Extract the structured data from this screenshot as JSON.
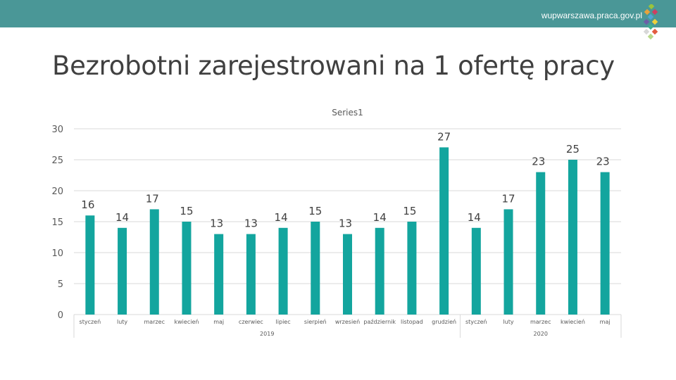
{
  "header": {
    "site_url": "wupwarszawa.praca.gov.pl",
    "bar_color": "#4a9797",
    "logo_icon": "colorful-mosaic-logo-icon"
  },
  "title": "Bezrobotni zarejestrowani na 1 ofertę pracy",
  "chart_data": {
    "type": "bar",
    "title": "Series1",
    "legend": "Series1",
    "xlabel": "",
    "ylabel": "",
    "ylim": [
      0,
      30
    ],
    "yticks": [
      0,
      5,
      10,
      15,
      20,
      25,
      30
    ],
    "grid": true,
    "bar_color": "#13a59e",
    "categories": [
      "styczeń",
      "luty",
      "marzec",
      "kwiecień",
      "maj",
      "czerwiec",
      "lipiec",
      "sierpień",
      "wrzesień",
      "październik",
      "listopad",
      "grudzień",
      "styczeń",
      "luty",
      "marzec",
      "kwiecień",
      "maj"
    ],
    "groups": [
      {
        "label": "2019",
        "count": 12
      },
      {
        "label": "2020",
        "count": 5
      }
    ],
    "series": [
      {
        "values": [
          16,
          14,
          17,
          15,
          13,
          13,
          14,
          15,
          13,
          14,
          15,
          27,
          14,
          17,
          23,
          25,
          23
        ]
      }
    ]
  }
}
